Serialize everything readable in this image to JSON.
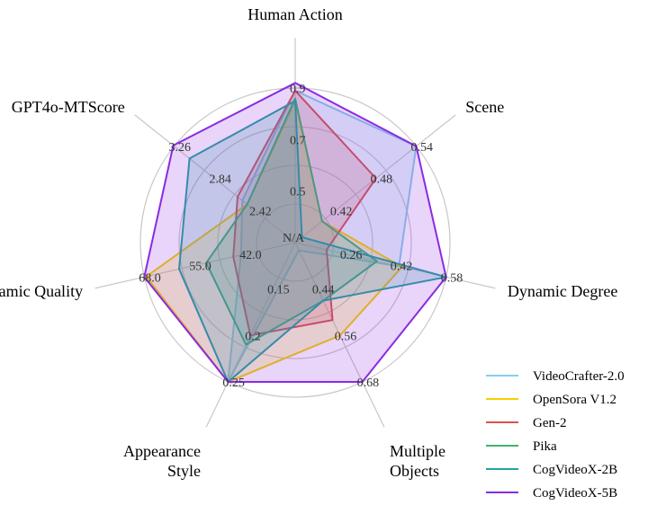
{
  "chart_data": {
    "type": "radar",
    "title": "",
    "axes": [
      {
        "label": "Human Action",
        "ticks": [
          "0.5",
          "0.7",
          "0.9"
        ],
        "range": [
          0.3,
          0.9
        ]
      },
      {
        "label": "Scene",
        "ticks": [
          "0.42",
          "0.48",
          "0.54"
        ],
        "range": [
          0.36,
          0.54
        ]
      },
      {
        "label": "Dynamic Degree",
        "ticks": [
          "0.26",
          "0.42",
          "0.58"
        ],
        "range": [
          0.1,
          0.58
        ]
      },
      {
        "label": "Multiple Objects",
        "ticks": [
          "0.44",
          "0.56",
          "0.68"
        ],
        "range": [
          0.32,
          0.68
        ]
      },
      {
        "label": "Appearance Style",
        "ticks": [
          "0.15",
          "0.2",
          "0.25"
        ],
        "range": [
          0.1,
          0.25
        ]
      },
      {
        "label": "Dynamic Quality",
        "ticks": [
          "42.0",
          "55.0",
          "68.0"
        ],
        "range": [
          29.0,
          68.0
        ]
      },
      {
        "label": "GPT4o-MTScore",
        "ticks": [
          "2.42",
          "2.84",
          "3.26"
        ],
        "range": [
          2.0,
          3.26
        ]
      }
    ],
    "center_label": "N/A",
    "series": [
      {
        "name": "VideoCrafter-2.0",
        "color": "#87ceeb",
        "values": [
          0.89,
          0.54,
          0.43,
          0.34,
          0.25,
          43.0,
          2.55
        ]
      },
      {
        "name": "OpenSora V1.2",
        "color": "#f5d000",
        "values": [
          0.85,
          0.4,
          0.44,
          0.56,
          0.25,
          67.5,
          2.5
        ]
      },
      {
        "name": "Gen-2",
        "color": "#d9534f",
        "values": [
          0.89,
          0.48,
          0.2,
          0.52,
          0.2,
          45.0,
          2.6
        ]
      },
      {
        "name": "Pika",
        "color": "#3cb371",
        "values": [
          0.86,
          0.4,
          0.36,
          0.47,
          0.21,
          52.0,
          2.5
        ]
      },
      {
        "name": "CogVideoX-2B",
        "color": "#20a39e",
        "values": [
          0.85,
          0.37,
          0.58,
          0.47,
          0.25,
          59.0,
          3.1
        ]
      },
      {
        "name": "CogVideoX-5B",
        "color": "#8a2be2",
        "values": [
          0.92,
          0.54,
          0.58,
          0.68,
          0.25,
          68.0,
          3.27
        ]
      }
    ],
    "legend_position": "bottom-right",
    "grid": true
  }
}
